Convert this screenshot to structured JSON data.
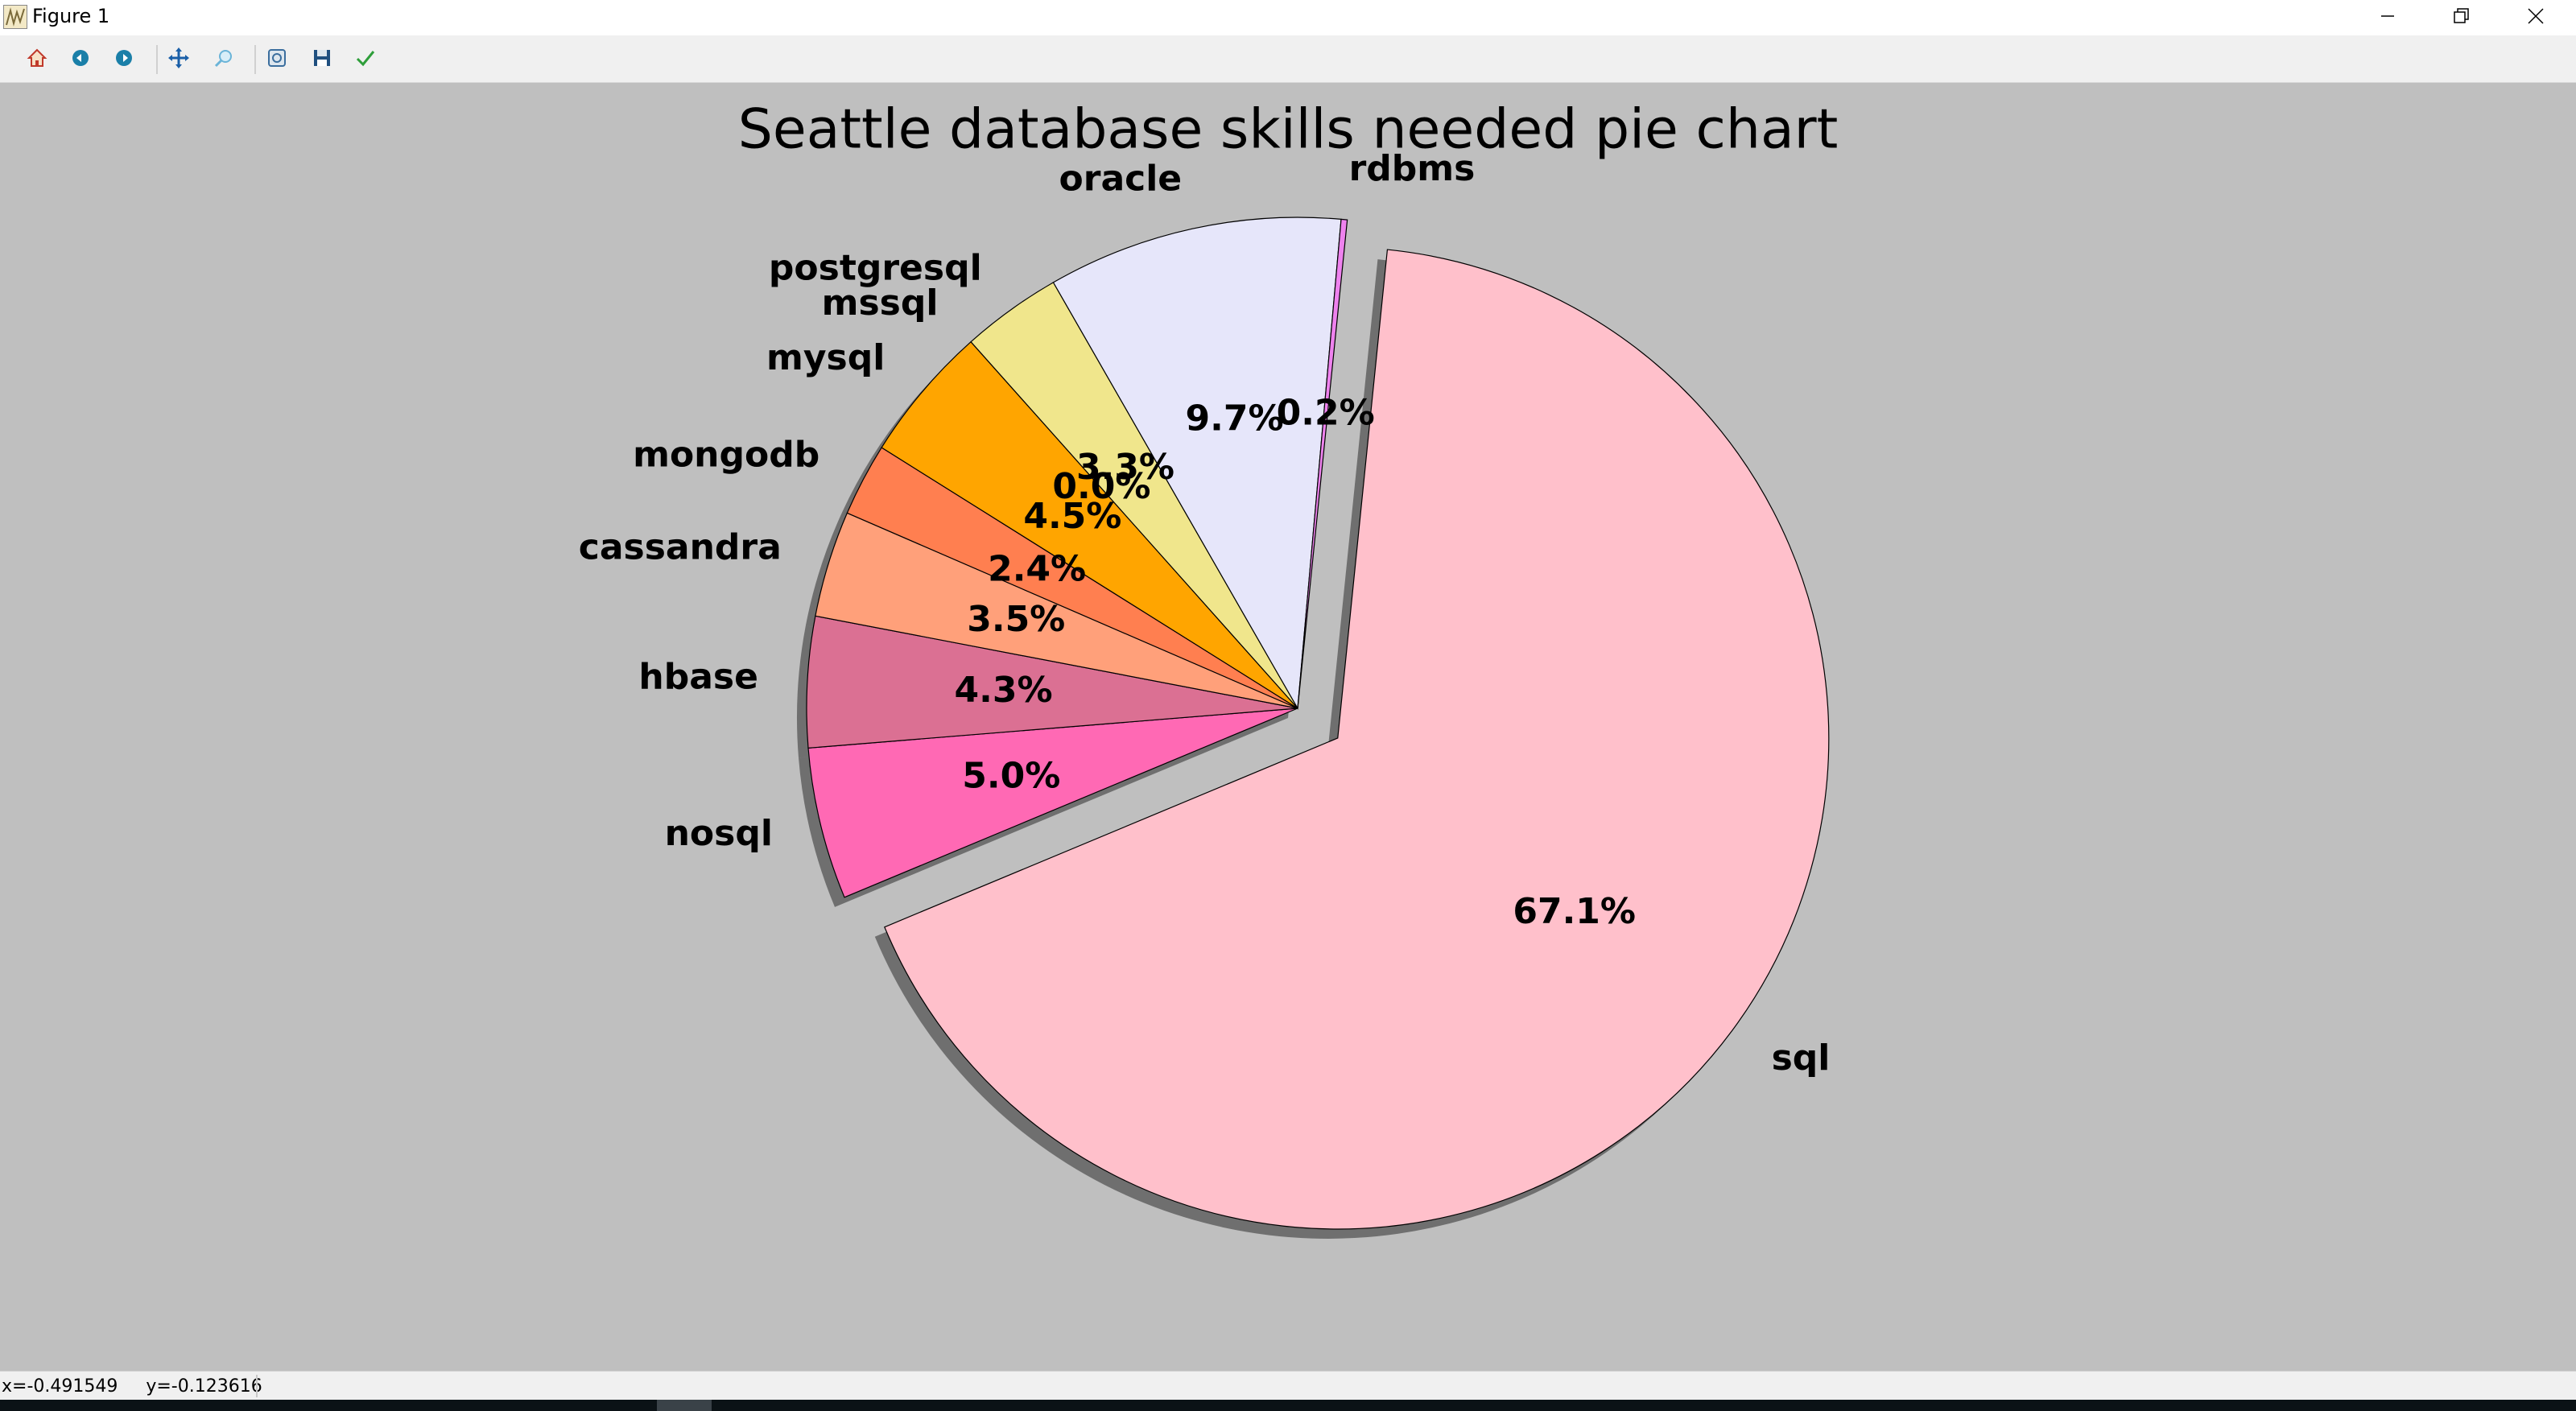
{
  "window": {
    "title": "Figure 1",
    "icons": {
      "app": "matplotlib-app-icon",
      "minimize": "minimize-icon",
      "maximize": "restore-icon",
      "close": "close-icon"
    }
  },
  "toolbar": {
    "buttons": [
      {
        "name": "home-icon",
        "color": "#c0392b"
      },
      {
        "name": "back-arrow-icon",
        "color": "#1a7fa8"
      },
      {
        "name": "forward-arrow-icon",
        "color": "#1a7fa8"
      },
      {
        "name": "pan-icon",
        "color": "#1a5fa8"
      },
      {
        "name": "zoom-icon",
        "color": "#6ab4d8"
      },
      {
        "name": "configure-subplots-icon",
        "color": "#3b6e9e"
      },
      {
        "name": "save-icon",
        "color": "#1f4f7f"
      },
      {
        "name": "edit-parameters-icon",
        "color": "#2e9e3a"
      }
    ]
  },
  "status": {
    "coordinates": "x=-0.491549     y=-0.123616"
  },
  "chart_data": {
    "type": "pie",
    "title": "Seattle database skills needed pie chart",
    "labels": [
      "sql",
      "nosql",
      "hbase",
      "cassandra",
      "mongodb",
      "mysql",
      "mssql",
      "postgresql",
      "oracle",
      "rdbms"
    ],
    "values": [
      67.1,
      5.0,
      4.3,
      3.5,
      2.4,
      4.5,
      0.0,
      3.3,
      9.7,
      0.2
    ],
    "pct_labels": [
      "67.1%",
      "5.0%",
      "4.3%",
      "3.5%",
      "2.4%",
      "4.5%",
      "0.0%",
      "3.3%",
      "9.7%",
      "0.2%"
    ],
    "colors": [
      "#ffc0cb",
      "#ff69b4",
      "#db7093",
      "#ffa07a",
      "#ff7f50",
      "#ffa500",
      "#ffd700",
      "#f0e68c",
      "#e6e6fa",
      "#ee82ee"
    ],
    "exploded": [
      "sql"
    ],
    "shadow": true,
    "start_angle_deg": 84.2,
    "direction": "clockwise",
    "background": "#bfbfbf"
  }
}
